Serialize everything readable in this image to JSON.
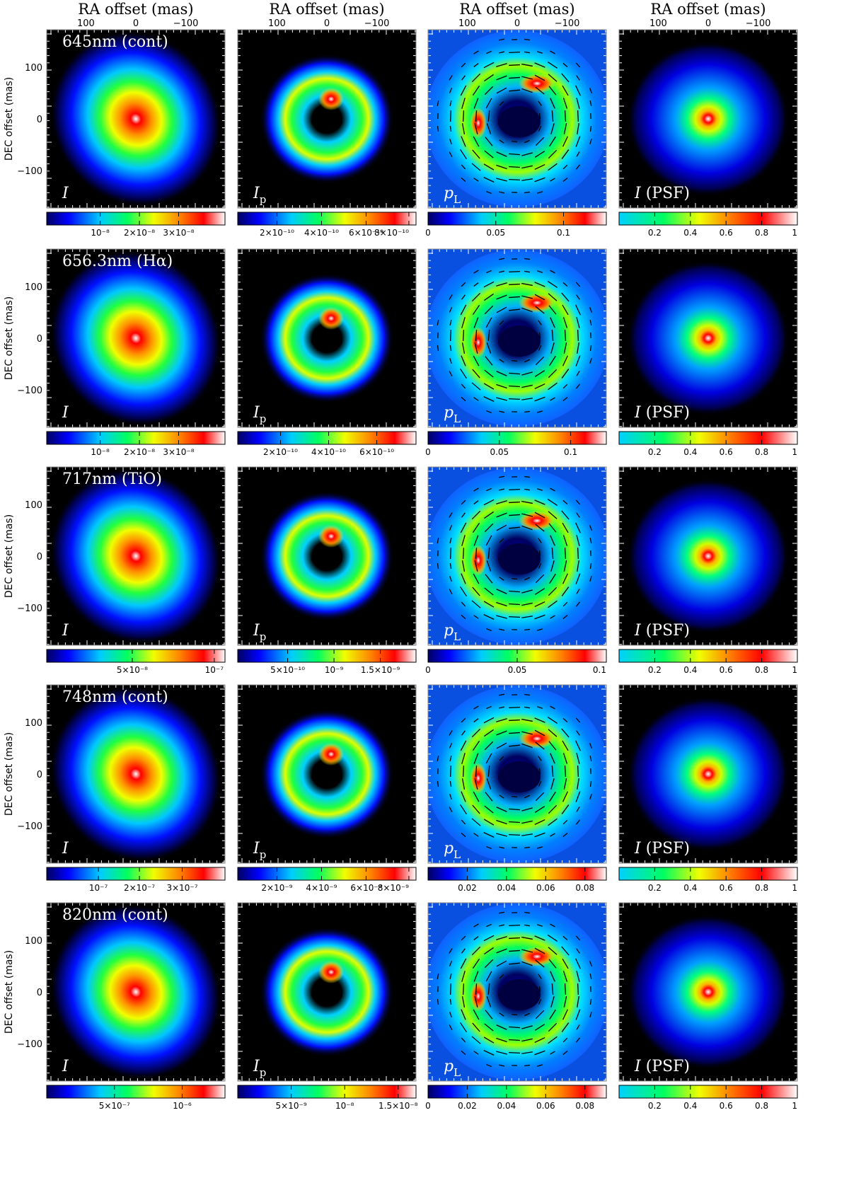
{
  "figure": {
    "x_axis_title": "RA offset (mas)",
    "y_axis_title": "DEC offset (mas)",
    "x_ticks": [
      "100",
      "0",
      "−100"
    ],
    "y_ticks": [
      "100",
      "0",
      "−100"
    ],
    "columns": [
      {
        "label_main": "I",
        "label_sub": "",
        "label_suffix": ""
      },
      {
        "label_main": "I",
        "label_sub": "p",
        "label_suffix": ""
      },
      {
        "label_main": "p",
        "label_sub": "L",
        "label_suffix": ""
      },
      {
        "label_main": "I",
        "label_sub": "",
        "label_suffix": " (PSF)"
      }
    ],
    "rows": [
      {
        "band": "645nm (cont)",
        "colorbars": [
          {
            "ticks": [
              "10⁻⁸",
              "2×10⁻⁸",
              "3×10⁻⁸"
            ],
            "tick_frac": [
              0.3,
              0.52,
              0.74
            ]
          },
          {
            "ticks": [
              "2×10⁻¹⁰",
              "4×10⁻¹⁰",
              "6×10⁻¹⁰",
              "8×10⁻¹⁰"
            ],
            "tick_frac": [
              0.22,
              0.47,
              0.72,
              0.96
            ]
          },
          {
            "ticks": [
              "0",
              "0.05",
              "0.1"
            ],
            "tick_frac": [
              0.0,
              0.38,
              0.76
            ]
          },
          {
            "ticks": [
              "0.2",
              "0.4",
              "0.6",
              "0.8",
              "1"
            ],
            "tick_frac": [
              0.2,
              0.4,
              0.6,
              0.8,
              1.0
            ]
          }
        ]
      },
      {
        "band": "656.3nm (Hα)",
        "colorbars": [
          {
            "ticks": [
              "10⁻⁸",
              "2×10⁻⁸",
              "3×10⁻⁸"
            ],
            "tick_frac": [
              0.3,
              0.52,
              0.74
            ]
          },
          {
            "ticks": [
              "2×10⁻¹⁰",
              "4×10⁻¹⁰",
              "6×10⁻¹⁰"
            ],
            "tick_frac": [
              0.24,
              0.51,
              0.78
            ]
          },
          {
            "ticks": [
              "0",
              "0.05",
              "0.1"
            ],
            "tick_frac": [
              0.0,
              0.4,
              0.8
            ]
          },
          {
            "ticks": [
              "0.2",
              "0.4",
              "0.6",
              "0.8",
              "1"
            ],
            "tick_frac": [
              0.2,
              0.4,
              0.6,
              0.8,
              1.0
            ]
          }
        ]
      },
      {
        "band": "717nm (TiO)",
        "colorbars": [
          {
            "ticks": [
              "5×10⁻⁸",
              "10⁻⁷"
            ],
            "tick_frac": [
              0.48,
              0.94
            ]
          },
          {
            "ticks": [
              "5×10⁻¹⁰",
              "10⁻⁹",
              "1.5×10⁻⁹"
            ],
            "tick_frac": [
              0.28,
              0.54,
              0.8
            ]
          },
          {
            "ticks": [
              "0",
              "0.05",
              "0.1"
            ],
            "tick_frac": [
              0.0,
              0.5,
              1.0
            ]
          },
          {
            "ticks": [
              "0.2",
              "0.4",
              "0.6",
              "0.8",
              "1"
            ],
            "tick_frac": [
              0.2,
              0.4,
              0.6,
              0.8,
              1.0
            ]
          }
        ]
      },
      {
        "band": "748nm (cont)",
        "colorbars": [
          {
            "ticks": [
              "10⁻⁷",
              "2×10⁻⁷",
              "3×10⁻⁷"
            ],
            "tick_frac": [
              0.29,
              0.52,
              0.76
            ]
          },
          {
            "ticks": [
              "2×10⁻⁹",
              "4×10⁻⁹",
              "6×10⁻⁹",
              "8×10⁻⁹"
            ],
            "tick_frac": [
              0.22,
              0.47,
              0.72,
              0.96
            ]
          },
          {
            "ticks": [
              "0.02",
              "0.04",
              "0.06",
              "0.08"
            ],
            "tick_frac": [
              0.22,
              0.44,
              0.66,
              0.88
            ]
          },
          {
            "ticks": [
              "0.2",
              "0.4",
              "0.6",
              "0.8",
              "1"
            ],
            "tick_frac": [
              0.2,
              0.4,
              0.6,
              0.8,
              1.0
            ]
          }
        ]
      },
      {
        "band": "820nm (cont)",
        "colorbars": [
          {
            "ticks": [
              "5×10⁻⁷",
              "10⁻⁶"
            ],
            "tick_frac": [
              0.38,
              0.76
            ]
          },
          {
            "ticks": [
              "5×10⁻⁹",
              "10⁻⁸",
              "1.5×10⁻⁸"
            ],
            "tick_frac": [
              0.3,
              0.6,
              0.9
            ]
          },
          {
            "ticks": [
              "0",
              "0.02",
              "0.04",
              "0.06",
              "0.08"
            ],
            "tick_frac": [
              0.0,
              0.22,
              0.44,
              0.66,
              0.88
            ]
          },
          {
            "ticks": [
              "0.2",
              "0.4",
              "0.6",
              "0.8",
              "1"
            ],
            "tick_frac": [
              0.2,
              0.4,
              0.6,
              0.8,
              1.0
            ]
          }
        ]
      }
    ]
  }
}
